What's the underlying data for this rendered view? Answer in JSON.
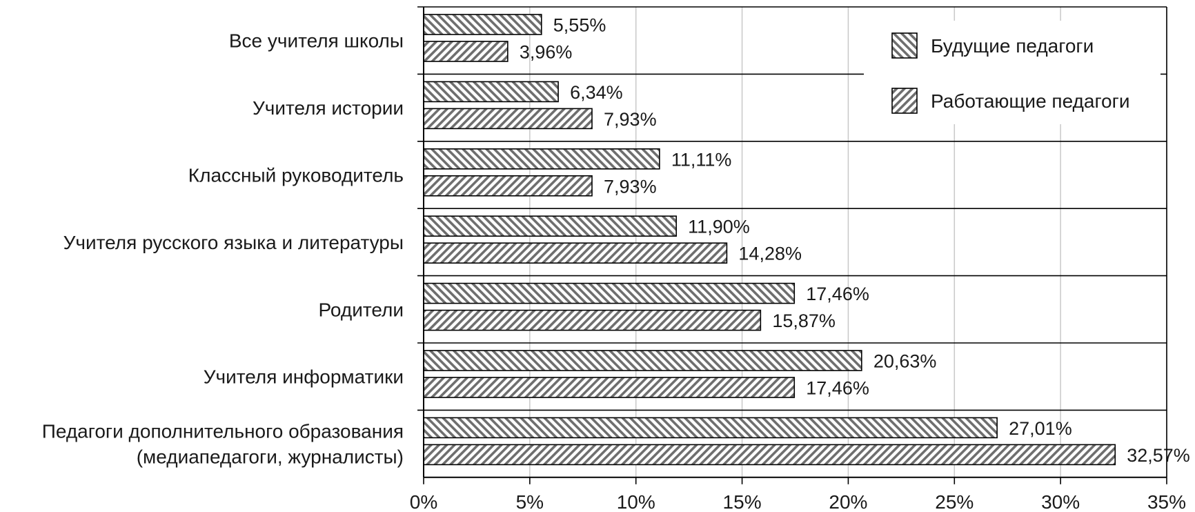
{
  "chart_data": {
    "type": "bar",
    "orientation": "horizontal",
    "categories": [
      [
        "Все учителя школы"
      ],
      [
        "Учителя истории"
      ],
      [
        "Классный руководитель"
      ],
      [
        "Учителя русского языка и литературы"
      ],
      [
        "Родители"
      ],
      [
        "Учителя информатики"
      ],
      [
        "Педагоги дополнительного образования",
        "(медиапедагоги, журналисты)"
      ]
    ],
    "series": [
      {
        "name": "Будущие педагоги",
        "values": [
          5.55,
          6.34,
          11.11,
          11.9,
          17.46,
          20.63,
          27.01
        ],
        "labels": [
          "5,55%",
          "6,34%",
          "11,11%",
          "11,90%",
          "17,46%",
          "20,63%",
          "27,01%"
        ],
        "pattern": "hatch-back"
      },
      {
        "name": "Работающие педагоги",
        "values": [
          3.96,
          7.93,
          7.93,
          14.28,
          15.87,
          17.46,
          32.57
        ],
        "labels": [
          "3,96%",
          "7,93%",
          "7,93%",
          "14,28%",
          "15,87%",
          "17,46%",
          "32,57%"
        ],
        "pattern": "hatch-forward"
      }
    ],
    "xlim": [
      0,
      35
    ],
    "xticks": [
      0,
      5,
      10,
      15,
      20,
      25,
      30,
      35
    ],
    "xtick_labels": [
      "0%",
      "5%",
      "10%",
      "15%",
      "20%",
      "25%",
      "30%",
      "35%"
    ],
    "grid": "vertical",
    "legend_position": "top-right",
    "title": "",
    "xlabel": "",
    "ylabel": ""
  }
}
